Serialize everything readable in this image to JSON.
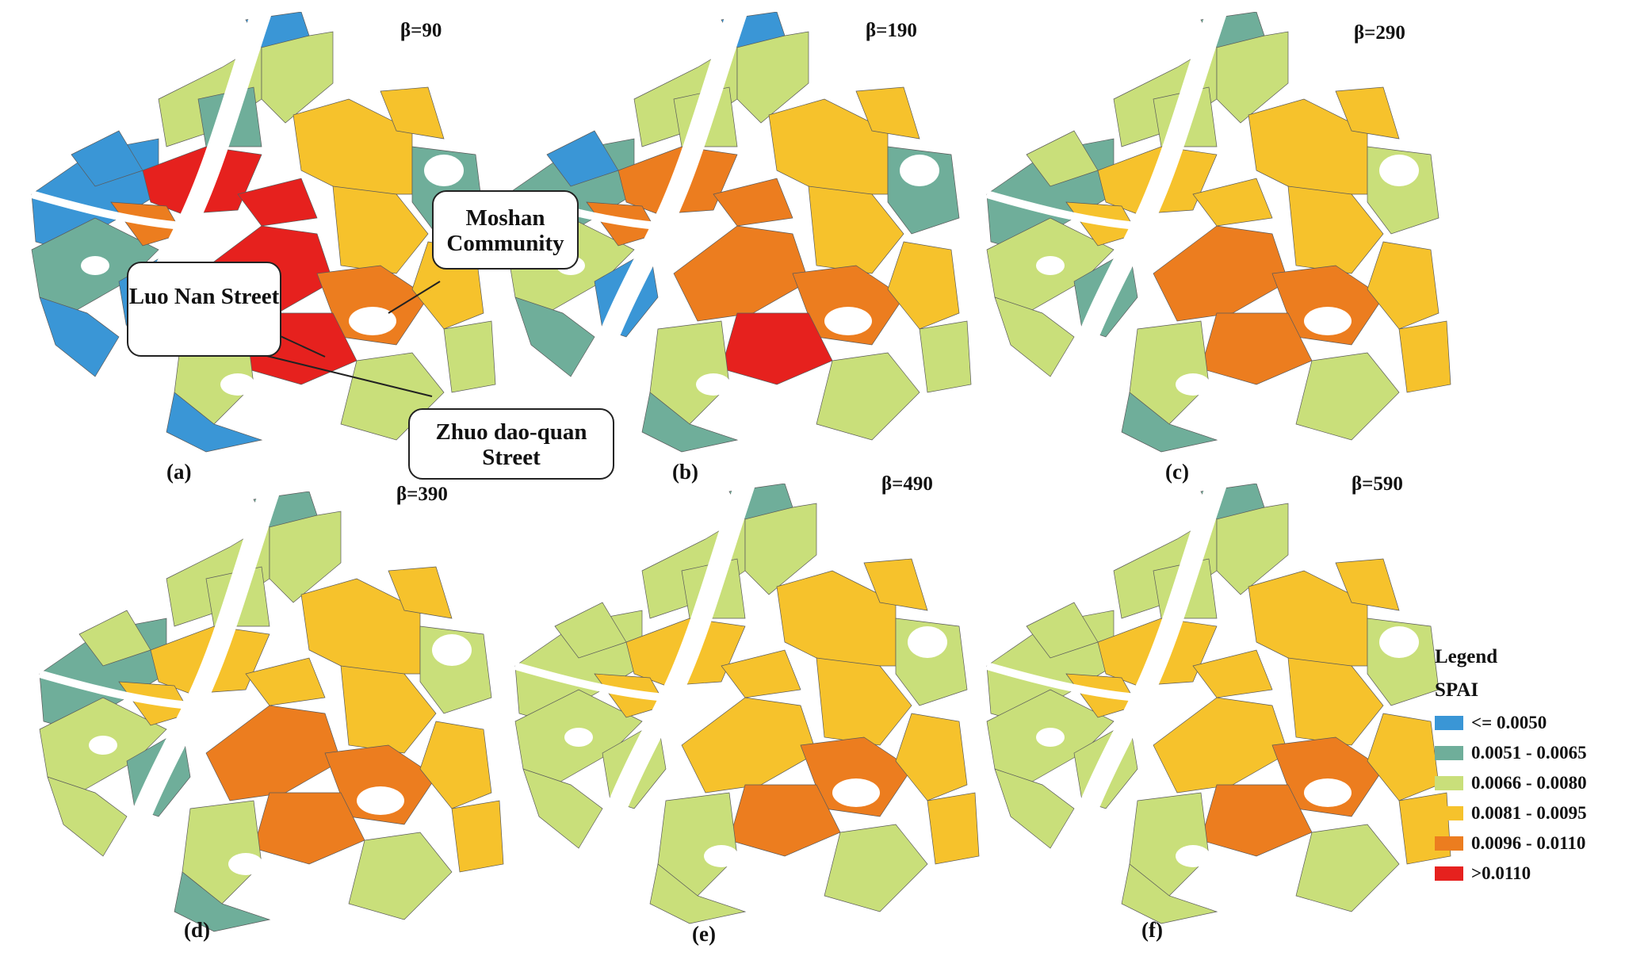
{
  "figure": {
    "panels": [
      {
        "label": "(a)",
        "beta": "β=90",
        "scheme": [
          0,
          2,
          5,
          2,
          0,
          1,
          0,
          0,
          3,
          5,
          3,
          4,
          5,
          2,
          1,
          3,
          0,
          2,
          5,
          4,
          3,
          0,
          1,
          2
        ]
      },
      {
        "label": "(b)",
        "beta": "β=190",
        "scheme": [
          1,
          2,
          4,
          2,
          0,
          2,
          1,
          0,
          3,
          4,
          3,
          4,
          5,
          2,
          1,
          3,
          1,
          2,
          4,
          4,
          3,
          0,
          2,
          2
        ]
      },
      {
        "label": "(c)",
        "beta": "β=290",
        "scheme": [
          1,
          2,
          3,
          2,
          1,
          2,
          2,
          1,
          3,
          4,
          3,
          4,
          4,
          2,
          2,
          3,
          1,
          2,
          3,
          3,
          3,
          2,
          2,
          3
        ]
      },
      {
        "label": "(d)",
        "beta": "β=390",
        "scheme": [
          1,
          2,
          3,
          2,
          1,
          2,
          2,
          1,
          3,
          4,
          3,
          4,
          4,
          2,
          2,
          3,
          1,
          2,
          3,
          3,
          3,
          2,
          2,
          3
        ]
      },
      {
        "label": "(e)",
        "beta": "β=490",
        "scheme": [
          2,
          2,
          3,
          2,
          1,
          2,
          2,
          2,
          3,
          3,
          3,
          4,
          4,
          2,
          2,
          3,
          2,
          2,
          3,
          3,
          3,
          2,
          2,
          3
        ]
      },
      {
        "label": "(f)",
        "beta": "β=590",
        "scheme": [
          2,
          2,
          3,
          2,
          1,
          2,
          2,
          2,
          3,
          3,
          3,
          4,
          4,
          2,
          2,
          3,
          2,
          2,
          3,
          3,
          3,
          2,
          2,
          3
        ]
      }
    ],
    "callouts": {
      "moshan": "Moshan Community",
      "luonan": "Luo Nan Street",
      "zhuodao": "Zhuo dao-quan Street"
    },
    "legend": {
      "title": "Legend",
      "subtitle": "SPAI",
      "classes": [
        {
          "label": "<= 0.0050",
          "color": "#3a96d6"
        },
        {
          "label": "0.0051 - 0.0065",
          "color": "#6fae9a"
        },
        {
          "label": "0.0066 - 0.0080",
          "color": "#c9df7a"
        },
        {
          "label": "0.0081 - 0.0095",
          "color": "#f6c22c"
        },
        {
          "label": "0.0096 - 0.0110",
          "color": "#ec7d1f"
        },
        {
          "label": ">0.0110",
          "color": "#e6211e"
        }
      ]
    }
  }
}
